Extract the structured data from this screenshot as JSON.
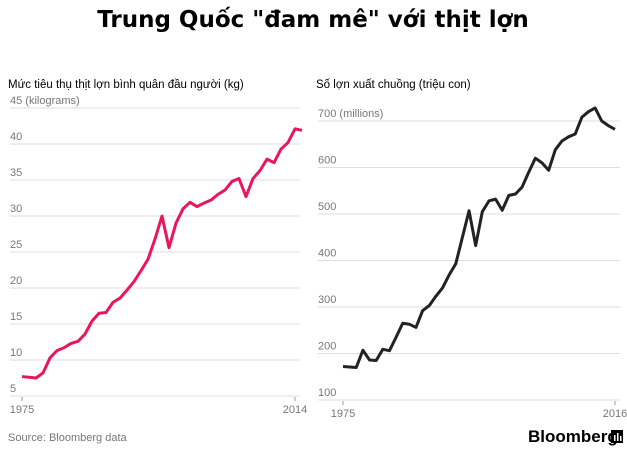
{
  "title": "Trung Quốc \"đam mê\" với thịt lợn",
  "source": "Source: Bloomberg data",
  "brand": "Bloomberg",
  "chart_data": [
    {
      "type": "line",
      "title": "Mức tiêu thụ thịt lợn bình quân đầu người (kg)",
      "x": [
        1975,
        1976,
        1977,
        1978,
        1979,
        1980,
        1981,
        1982,
        1983,
        1984,
        1985,
        1986,
        1987,
        1988,
        1989,
        1990,
        1991,
        1992,
        1993,
        1994,
        1995,
        1996,
        1997,
        1998,
        1999,
        2000,
        2001,
        2002,
        2003,
        2004,
        2005,
        2006,
        2007,
        2008,
        2009,
        2010,
        2011,
        2012,
        2013,
        2014,
        2015
      ],
      "series": [
        {
          "name": "Mức tiêu thụ",
          "color": "#e8175d",
          "values": [
            7.7,
            7.6,
            7.5,
            8.2,
            10.3,
            11.3,
            11.7,
            12.3,
            12.6,
            13.6,
            15.4,
            16.5,
            16.6,
            18.0,
            18.6,
            19.7,
            20.9,
            22.4,
            24.0,
            26.8,
            30.0,
            25.6,
            29.0,
            31.0,
            31.9,
            31.3,
            31.8,
            32.2,
            33.0,
            33.6,
            34.8,
            35.2,
            32.7,
            35.2,
            36.3,
            37.9,
            37.4,
            39.3,
            40.2,
            42.1,
            41.9
          ]
        }
      ],
      "xlim": [
        1975,
        2015
      ],
      "xticks": [
        1975,
        2014
      ],
      "ylim": [
        5,
        45
      ],
      "yticks": [
        5,
        10,
        15,
        20,
        25,
        30,
        35,
        40,
        {
          "value": 45,
          "label": "45 (kilograms)"
        }
      ],
      "grid": true
    },
    {
      "type": "line",
      "title": "Số lợn xuất chuồng (triệu con)",
      "x": [
        1975,
        1976,
        1977,
        1978,
        1979,
        1980,
        1981,
        1982,
        1983,
        1984,
        1985,
        1986,
        1987,
        1988,
        1989,
        1990,
        1991,
        1992,
        1993,
        1994,
        1995,
        1996,
        1997,
        1998,
        1999,
        2000,
        2001,
        2002,
        2003,
        2004,
        2005,
        2006,
        2007,
        2008,
        2009,
        2010,
        2011,
        2012,
        2013,
        2014,
        2015,
        2016
      ],
      "series": [
        {
          "name": "Số lợn",
          "color": "#222222",
          "values": [
            172,
            171,
            170,
            207,
            186,
            185,
            209,
            206,
            235,
            265,
            263,
            256,
            292,
            303,
            323,
            341,
            369,
            393,
            450,
            507,
            432,
            505,
            528,
            532,
            508,
            540,
            543,
            558,
            590,
            620,
            610,
            594,
            638,
            657,
            666,
            672,
            708,
            720,
            728,
            700,
            690,
            682
          ]
        }
      ],
      "xlim": [
        1975,
        2016
      ],
      "xticks": [
        1975,
        2016
      ],
      "ylim": [
        100,
        700
      ],
      "yticks": [
        100,
        200,
        300,
        400,
        500,
        600,
        {
          "value": 700,
          "label": "700 (millions)"
        }
      ],
      "grid": true
    }
  ]
}
